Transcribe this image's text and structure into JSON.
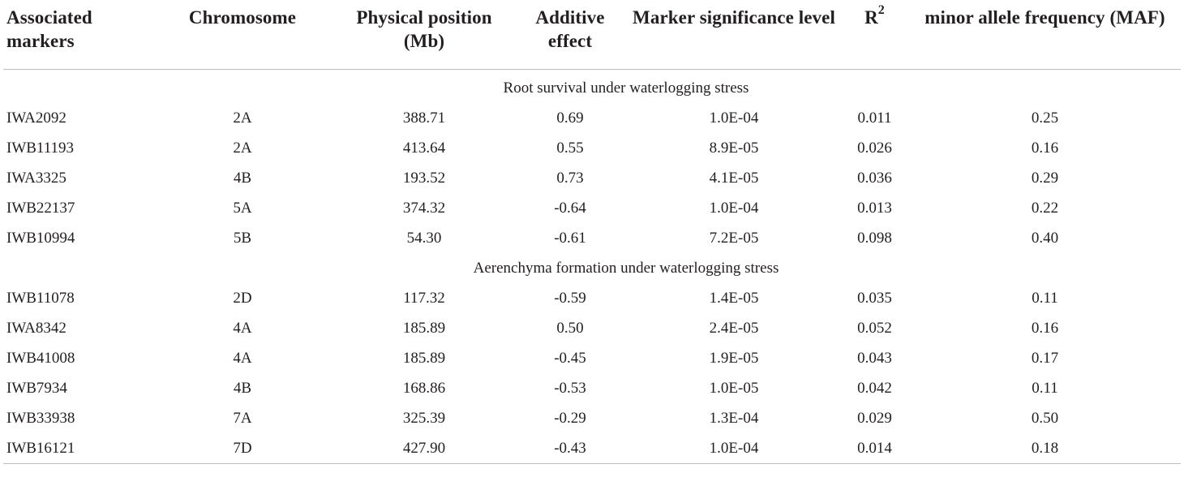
{
  "table": {
    "headers": [
      "Associated markers",
      "Chromosome",
      "Physical position (Mb)",
      "Additive effect",
      "Marker significance level",
      "R",
      "minor allele frequency (MAF)"
    ],
    "r2_superscript": "2",
    "sections": [
      {
        "title": "Root survival under waterlogging stress",
        "rows": [
          [
            "IWA2092",
            "2A",
            "388.71",
            "0.69",
            "1.0E-04",
            "0.011",
            "0.25"
          ],
          [
            "IWB11193",
            "2A",
            "413.64",
            "0.55",
            "8.9E-05",
            "0.026",
            "0.16"
          ],
          [
            "IWA3325",
            "4B",
            "193.52",
            "0.73",
            "4.1E-05",
            "0.036",
            "0.29"
          ],
          [
            "IWB22137",
            "5A",
            "374.32",
            "-0.64",
            "1.0E-04",
            "0.013",
            "0.22"
          ],
          [
            "IWB10994",
            "5B",
            "54.30",
            "-0.61",
            "7.2E-05",
            "0.098",
            "0.40"
          ]
        ]
      },
      {
        "title": "Aerenchyma formation under waterlogging stress",
        "rows": [
          [
            "IWB11078",
            "2D",
            "117.32",
            "-0.59",
            "1.4E-05",
            "0.035",
            "0.11"
          ],
          [
            "IWA8342",
            "4A",
            "185.89",
            "0.50",
            "2.4E-05",
            "0.052",
            "0.16"
          ],
          [
            "IWB41008",
            "4A",
            "185.89",
            "-0.45",
            "1.9E-05",
            "0.043",
            "0.17"
          ],
          [
            "IWB7934",
            "4B",
            "168.86",
            "-0.53",
            "1.0E-05",
            "0.042",
            "0.11"
          ],
          [
            "IWB33938",
            "7A",
            "325.39",
            "-0.29",
            "1.3E-04",
            "0.029",
            "0.50"
          ],
          [
            "IWB16121",
            "7D",
            "427.90",
            "-0.43",
            "1.0E-04",
            "0.014",
            "0.18"
          ]
        ]
      }
    ]
  }
}
